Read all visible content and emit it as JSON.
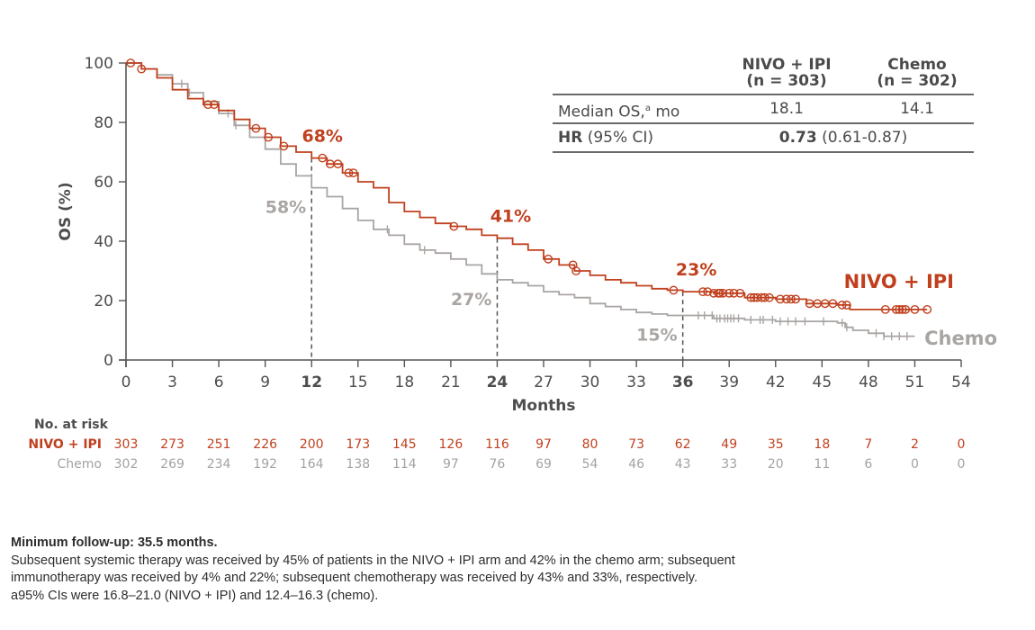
{
  "chart_data": {
    "type": "line",
    "subtype": "kaplan-meier",
    "title": "",
    "xlabel": "Months",
    "ylabel": "OS (%)",
    "xlim": [
      0,
      54
    ],
    "ylim": [
      0,
      100
    ],
    "x_ticks": [
      0,
      3,
      6,
      9,
      12,
      15,
      18,
      21,
      24,
      27,
      30,
      33,
      36,
      39,
      42,
      45,
      48,
      51,
      54
    ],
    "x_ticks_bold": [
      12,
      24,
      36
    ],
    "y_ticks": [
      0,
      20,
      40,
      60,
      80,
      100
    ],
    "grid": false,
    "reference_lines": [
      12,
      24,
      36
    ],
    "series": [
      {
        "name": "NIVO + IPI",
        "color": "#c0401e",
        "censor_marker": "circle",
        "x": [
          0,
          0.5,
          1,
          2,
          3,
          4,
          5,
          6,
          7,
          8,
          9,
          10,
          11,
          12,
          13,
          14,
          15,
          16,
          17,
          18,
          19,
          20,
          21,
          22,
          23,
          24,
          25,
          26,
          27,
          28,
          29,
          30,
          31,
          32,
          33,
          34,
          35,
          36,
          38,
          40,
          42,
          44,
          46,
          46.8,
          48,
          50,
          51.8
        ],
        "y": [
          100,
          100,
          98,
          95,
          91,
          88,
          86,
          84,
          81,
          78,
          75,
          72,
          70,
          68,
          66,
          63,
          60,
          58,
          53,
          50,
          48,
          46,
          45,
          44,
          42,
          41,
          39,
          37,
          34,
          32,
          30,
          28.5,
          27,
          26,
          25,
          24,
          23.5,
          23,
          22.5,
          21,
          20.5,
          19,
          18.5,
          17,
          17,
          17,
          17
        ],
        "censor_x": [
          0.3,
          1,
          5.3,
          5.7,
          8.4,
          9.2,
          10.2,
          12.7,
          13.2,
          13.7,
          14.4,
          14.7,
          21.2,
          27.3,
          28.9,
          29.1,
          35.4,
          37.3,
          37.6,
          38.0,
          38.3,
          38.4,
          38.6,
          39.0,
          39.3,
          39.7,
          40.4,
          40.6,
          40.8,
          41.1,
          41.3,
          41.6,
          42.3,
          42.7,
          43.0,
          43.3,
          44.2,
          44.7,
          45.2,
          45.7,
          46.3,
          46.6,
          49.1,
          49.8,
          50.0,
          50.2,
          50.4,
          51.0,
          51.8
        ],
        "milestones": [
          {
            "x": 12,
            "y": 68,
            "label": "68%"
          },
          {
            "x": 24,
            "y": 41,
            "label": "41%"
          },
          {
            "x": 36,
            "y": 23,
            "label": "23%"
          }
        ]
      },
      {
        "name": "Chemo",
        "color": "#a9a5a3",
        "censor_marker": "tick",
        "x": [
          0,
          1,
          2,
          3,
          4,
          5,
          6,
          7,
          8,
          9,
          10,
          11,
          12,
          13,
          14,
          15,
          16,
          17,
          18,
          19,
          20,
          21,
          22,
          23,
          24,
          25,
          26,
          27,
          28,
          29,
          30,
          31,
          32,
          33,
          34,
          35,
          36,
          38,
          40,
          42,
          44,
          46,
          46.5,
          47,
          48,
          49,
          51
        ],
        "y": [
          100,
          98,
          96,
          93,
          90,
          87,
          83,
          79,
          75,
          71,
          66,
          62,
          58,
          55,
          51,
          47,
          44,
          42,
          39,
          37,
          36,
          34,
          32,
          29,
          27,
          26,
          25,
          23,
          22,
          21,
          19,
          18,
          17,
          16,
          15.5,
          15,
          15,
          14,
          13.5,
          13,
          13,
          12.5,
          11,
          10,
          9,
          8,
          8
        ],
        "censor_x": [
          3.6,
          4.1,
          6.6,
          7.1,
          16.9,
          19.3,
          37.0,
          37.4,
          37.9,
          38.2,
          38.4,
          38.7,
          38.9,
          39.1,
          39.3,
          39.6,
          40.4,
          41.0,
          41.2,
          41.8,
          42.3,
          42.8,
          43.3,
          43.9,
          45.1,
          46.3,
          46.6,
          48.5,
          49.0,
          49.5,
          50.0,
          50.5
        ],
        "milestones": [
          {
            "x": 12,
            "y": 58,
            "label": "58%"
          },
          {
            "x": 24,
            "y": 27,
            "label": "27%"
          },
          {
            "x": 36,
            "y": 15,
            "label": "15%"
          }
        ]
      }
    ],
    "legend": [
      {
        "label": "NIVO + IPI",
        "placement": "right, above curve"
      },
      {
        "label": "Chemo",
        "placement": "right, end of curve"
      }
    ],
    "number_at_risk": {
      "title": "No. at risk",
      "times": [
        0,
        3,
        6,
        9,
        12,
        15,
        18,
        21,
        24,
        27,
        30,
        33,
        36,
        39,
        42,
        45,
        48,
        51,
        54
      ],
      "rows": [
        {
          "label": "NIVO + IPI",
          "values": [
            303,
            273,
            251,
            226,
            200,
            173,
            145,
            126,
            116,
            97,
            80,
            73,
            62,
            49,
            35,
            18,
            7,
            2,
            0
          ]
        },
        {
          "label": "Chemo",
          "values": [
            302,
            269,
            234,
            192,
            164,
            138,
            114,
            97,
            76,
            69,
            54,
            46,
            43,
            33,
            20,
            11,
            6,
            0,
            0
          ]
        }
      ]
    }
  },
  "stats_table": {
    "headers": [
      {
        "line1": "NIVO + IPI",
        "line2": "(n = 303)"
      },
      {
        "line1": "Chemo",
        "line2": "(n = 302)"
      }
    ],
    "median_os": {
      "label": "Median OS,",
      "superscript": "a",
      "unit": " mo",
      "nivo": "18.1",
      "chemo": "14.1"
    },
    "hr": {
      "label_bold": "HR",
      "label_rest": " (95% CI)",
      "value_bold": "0.73",
      "value_rest": " (0.61-0.87)"
    }
  },
  "footnotes": {
    "follow_up": "Minimum follow-up: 35.5 months.",
    "line1": "Subsequent systemic therapy was received by 45% of patients in the NIVO + IPI arm and 42% in the chemo arm; subsequent",
    "line2": "immunotherapy was received by 4% and 22%; subsequent chemotherapy was received by 43% and 33%, respectively.",
    "line3": "a95% CIs were 16.8–21.0 (NIVO + IPI) and 12.4–16.3 (chemo)."
  }
}
